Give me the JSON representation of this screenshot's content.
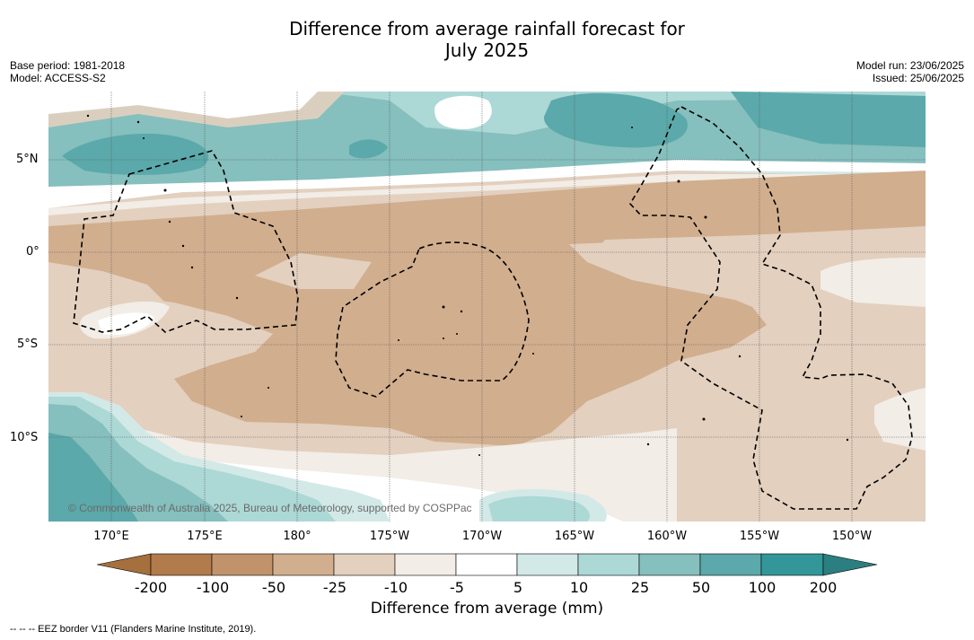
{
  "title_line1": "Difference from average rainfall forecast for",
  "title_line2": "July 2025",
  "base_period": "Base period: 1981-2018",
  "model": "Model: ACCESS-S2",
  "model_run": "Model run: 23/06/2025",
  "issued": "Issued: 25/06/2025",
  "lat_labels": [
    "5°N",
    "0°",
    "5°S",
    "10°S"
  ],
  "lon_labels": [
    "170°E",
    "175°E",
    "180°",
    "175°W",
    "170°W",
    "165°W",
    "160°W",
    "155°W",
    "150°W"
  ],
  "colorbar": {
    "labels": [
      "-200",
      "-100",
      "-50",
      "-25",
      "-10",
      "-5",
      "5",
      "10",
      "25",
      "50",
      "100",
      "200"
    ],
    "colors": [
      "#a5703c",
      "#b27b4b",
      "#c0936a",
      "#d1ae8e",
      "#e3d0bf",
      "#f2ede6",
      "#ffffff",
      "#d2e9e7",
      "#acd8d6",
      "#85bfbe",
      "#5ba9aa",
      "#33979a",
      "#2b7f80"
    ],
    "title": "Difference from average (mm)"
  },
  "copyright": "© Commonwealth of Australia 2025, Bureau of Meteorology, supported by COSPPac",
  "footer": "--  --  -- EEZ border V11 (Flanders Marine Institute, 2019)."
}
